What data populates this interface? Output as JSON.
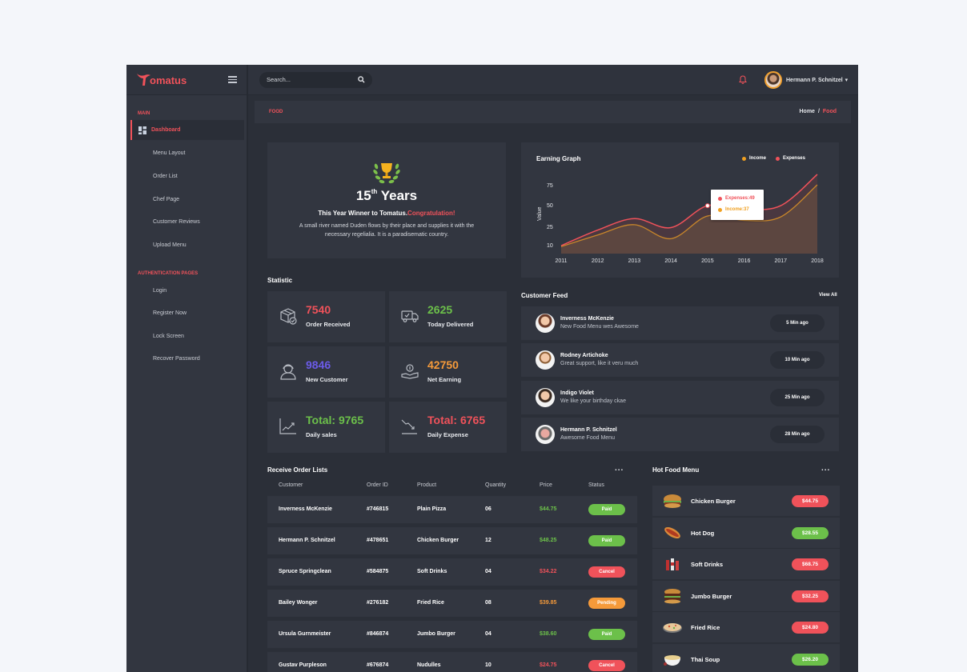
{
  "colors": {
    "accent": "#f0525a",
    "green": "#6cc04a",
    "orange": "#f59a3a",
    "purple": "#6b5be8",
    "income": "#f0a020",
    "expenses": "#f0525a",
    "panel": "#323640",
    "bg": "#2b2f38"
  },
  "header": {
    "logo_text": "omatus",
    "search_placeholder": "Search...",
    "user_name": "Hermann P. Schnitzel"
  },
  "sidebar": {
    "sections": [
      {
        "title": "MAIN",
        "items": [
          {
            "label": "Dashboard",
            "active": true
          },
          {
            "label": "Menu Layout"
          },
          {
            "label": "Order List"
          },
          {
            "label": "Chef Page"
          },
          {
            "label": "Customer Reviews"
          },
          {
            "label": "Upload Menu"
          }
        ]
      },
      {
        "title": "AUTHENTICATION PAGES",
        "items": [
          {
            "label": "Login"
          },
          {
            "label": "Register Now"
          },
          {
            "label": "Lock Screen"
          },
          {
            "label": "Recover Password"
          }
        ]
      }
    ]
  },
  "breadcrumb": {
    "page_title": "FOOD",
    "home": "Home",
    "separator": "/",
    "current": "Food"
  },
  "winner": {
    "years_num": "15",
    "years_sup": "th",
    "years_word": "Years",
    "tagline": "This Year Winner to Tomatus.",
    "tagline_highlight": "Congratulation!",
    "description": "A small river named Duden flows by their place and supplies it with the necessary regelialia. It is a paradisematic country."
  },
  "chart_data": {
    "type": "area",
    "title": "Earning Graph",
    "xlabel": "",
    "ylabel": "Value",
    "x": [
      "2011",
      "2012",
      "2013",
      "2014",
      "2015",
      "2016",
      "2017",
      "2018"
    ],
    "yticks": [
      10,
      25,
      50,
      75
    ],
    "series": [
      {
        "name": "Income",
        "color": "#f0a020",
        "values": [
          8,
          18,
          27,
          15,
          37,
          32,
          36,
          75
        ]
      },
      {
        "name": "Expenses",
        "color": "#f0525a",
        "values": [
          9,
          22,
          34,
          24,
          49,
          45,
          49,
          88
        ]
      }
    ],
    "tooltip": {
      "x": "2015",
      "lines": [
        "Expenses:49",
        "Income:37"
      ]
    },
    "legend_position": "top-right",
    "grid": false
  },
  "statistic": {
    "title": "Statistic",
    "cards": [
      {
        "value": "7540",
        "label": "Order Received",
        "color": "#f0525a",
        "icon": "box-icon"
      },
      {
        "value": "2625",
        "label": "Today Delivered",
        "color": "#6cc04a",
        "icon": "truck-icon"
      },
      {
        "value": "9846",
        "label": "New Customer",
        "color": "#6b5be8",
        "icon": "customer-icon"
      },
      {
        "value": "42750",
        "label": "Net Earning",
        "color": "#f59a3a",
        "icon": "money-hand-icon"
      },
      {
        "value": "Total: 9765",
        "label": "Daily sales",
        "color": "#6cc04a",
        "icon": "chart-up-icon"
      },
      {
        "value": "Total: 6765",
        "label": "Daily Expense",
        "color": "#f0525a",
        "icon": "chart-down-icon"
      }
    ]
  },
  "feed": {
    "title": "Customer Feed",
    "view_all": "View All",
    "items": [
      {
        "name": "Inverness McKenzie",
        "message": "New Food Menu wes Awesome",
        "time": "5 Min ago"
      },
      {
        "name": "Rodney Artichoke",
        "message": "Great support, like it veru much",
        "time": "10 Min ago"
      },
      {
        "name": "Indigo Violet",
        "message": "We like your birthday ckae",
        "time": "25 Min ago"
      },
      {
        "name": "Hermann P. Schnitzel",
        "message": "Awesome Food Menu",
        "time": "28 Min ago"
      }
    ]
  },
  "orders": {
    "title": "Receive Order Lists",
    "more": "...",
    "columns": [
      "Customer",
      "Order ID",
      "Product",
      "Quantity",
      "Price",
      "Status"
    ],
    "rows": [
      {
        "customer": "Inverness McKenzie",
        "id": "#746815",
        "product": "Plain Pizza",
        "qty": "06",
        "price": "$44.75",
        "status": "Paid"
      },
      {
        "customer": "Hermann P. Schnitzel",
        "id": "#478651",
        "product": "Chicken Burger",
        "qty": "12",
        "price": "$48.25",
        "status": "Paid"
      },
      {
        "customer": "Spruce Springclean",
        "id": "#584875",
        "product": "Soft Drinks",
        "qty": "04",
        "price": "$34.22",
        "status": "Cancel"
      },
      {
        "customer": "Bailey Wonger",
        "id": "#276182",
        "product": "Fried Rice",
        "qty": "08",
        "price": "$39.85",
        "status": "Pending"
      },
      {
        "customer": "Ursula Gurnmeister",
        "id": "#846874",
        "product": "Jumbo Burger",
        "qty": "04",
        "price": "$38.60",
        "status": "Paid"
      },
      {
        "customer": "Gustav Purpleson",
        "id": "#676874",
        "product": "Nudulles",
        "qty": "10",
        "price": "$24.75",
        "status": "Cancel"
      }
    ]
  },
  "hot_food": {
    "title": "Hot Food Menu",
    "more": "...",
    "items": [
      {
        "name": "Chicken Burger",
        "price": "$44.75",
        "tone": "red"
      },
      {
        "name": "Hot Dog",
        "price": "$28.55",
        "tone": "green"
      },
      {
        "name": "Soft Drinks",
        "price": "$68.75",
        "tone": "red"
      },
      {
        "name": "Jumbo Burger",
        "price": "$32.25",
        "tone": "red"
      },
      {
        "name": "Fried Rice",
        "price": "$24.80",
        "tone": "red"
      },
      {
        "name": "Thai Soup",
        "price": "$26.20",
        "tone": "green"
      }
    ]
  }
}
